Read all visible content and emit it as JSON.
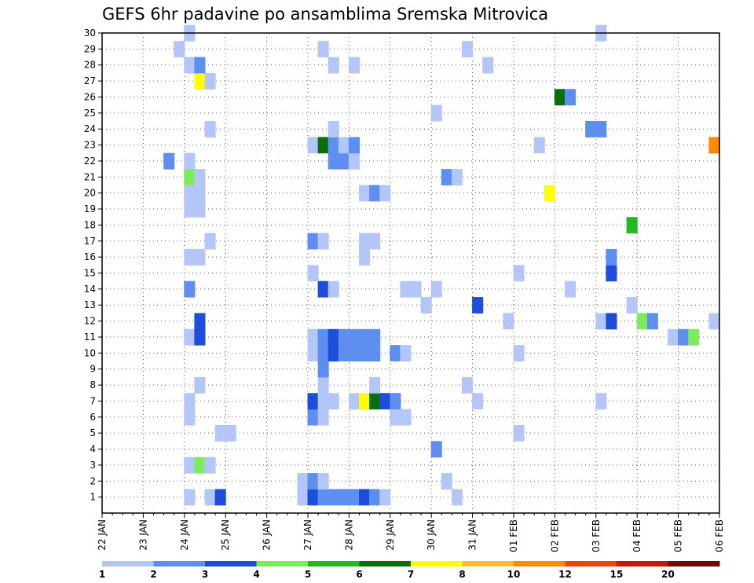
{
  "chart_data": {
    "type": "heatmap",
    "title": "GEFS 6hr padavine po ansamblima Sremska Mitrovica",
    "xlabel": "",
    "ylabel": "",
    "x_ticks": [
      "22 JAN",
      "23 JAN",
      "24 JAN",
      "25 JAN",
      "26 JAN",
      "27 JAN",
      "28 JAN",
      "29 JAN",
      "30 JAN",
      "31 JAN",
      "01 FEB",
      "02 FEB",
      "03 FEB",
      "04 FEB",
      "05 FEB",
      "06 FEB"
    ],
    "x_range": [
      0,
      60
    ],
    "y_range": [
      0,
      30
    ],
    "y_ticks": [
      1,
      2,
      3,
      4,
      5,
      6,
      7,
      8,
      9,
      10,
      11,
      12,
      13,
      14,
      15,
      16,
      17,
      18,
      19,
      20,
      21,
      22,
      23,
      24,
      25,
      26,
      27,
      28,
      29,
      30
    ],
    "x_step": "6hr",
    "grid": true,
    "legend_position": "bottom",
    "legend_labels": [
      "1",
      "2",
      "3",
      "4",
      "5",
      "6",
      "7",
      "8",
      "10",
      "12",
      "15",
      "20"
    ],
    "legend_colors": [
      "#b3c6f7",
      "#5e8ef0",
      "#1c4ddb",
      "#7ceb5c",
      "#22b822",
      "#0b6e0b",
      "#ffff00",
      "#ffbb2e",
      "#ff8a00",
      "#e64a00",
      "#c41a00",
      "#6e0a0a"
    ],
    "cell_color_scale": [
      "#b3c6f7",
      "#5e8ef0",
      "#1c4ddb",
      "#7ceb5c",
      "#22b822",
      "#0b6e0b",
      "#ffff00",
      "#ff8a00"
    ],
    "cells": [
      [
        8,
        1,
        1
      ],
      [
        10,
        1,
        1
      ],
      [
        11,
        1,
        3
      ],
      [
        19,
        1,
        1
      ],
      [
        20,
        1,
        3
      ],
      [
        21,
        1,
        2
      ],
      [
        22,
        1,
        2
      ],
      [
        23,
        1,
        2
      ],
      [
        24,
        1,
        2
      ],
      [
        25,
        1,
        3
      ],
      [
        26,
        1,
        2
      ],
      [
        27,
        1,
        1
      ],
      [
        34,
        1,
        1
      ],
      [
        19,
        2,
        1
      ],
      [
        20,
        2,
        2
      ],
      [
        21,
        2,
        1
      ],
      [
        33,
        2,
        1
      ],
      [
        8,
        3,
        1
      ],
      [
        9,
        3,
        4
      ],
      [
        10,
        3,
        1
      ],
      [
        32,
        4,
        2
      ],
      [
        11,
        5,
        1
      ],
      [
        12,
        5,
        1
      ],
      [
        40,
        5,
        1
      ],
      [
        8,
        6,
        1
      ],
      [
        20,
        6,
        2
      ],
      [
        21,
        6,
        1
      ],
      [
        28,
        6,
        1
      ],
      [
        29,
        6,
        1
      ],
      [
        8,
        7,
        1
      ],
      [
        20,
        7,
        3
      ],
      [
        21,
        7,
        1
      ],
      [
        22,
        7,
        1
      ],
      [
        24,
        7,
        1
      ],
      [
        25,
        7,
        7
      ],
      [
        26,
        7,
        6
      ],
      [
        27,
        7,
        3
      ],
      [
        28,
        7,
        2
      ],
      [
        36,
        7,
        1
      ],
      [
        48,
        7,
        1
      ],
      [
        9,
        8,
        1
      ],
      [
        21,
        8,
        1
      ],
      [
        26,
        8,
        1
      ],
      [
        35,
        8,
        1
      ],
      [
        21,
        9,
        2
      ],
      [
        20,
        10,
        1
      ],
      [
        21,
        10,
        2
      ],
      [
        22,
        10,
        3
      ],
      [
        23,
        10,
        2
      ],
      [
        24,
        10,
        2
      ],
      [
        25,
        10,
        2
      ],
      [
        26,
        10,
        2
      ],
      [
        28,
        10,
        2
      ],
      [
        29,
        10,
        1
      ],
      [
        40,
        10,
        1
      ],
      [
        8,
        11,
        1
      ],
      [
        9,
        11,
        3
      ],
      [
        20,
        11,
        1
      ],
      [
        21,
        11,
        2
      ],
      [
        22,
        11,
        3
      ],
      [
        23,
        11,
        2
      ],
      [
        24,
        11,
        2
      ],
      [
        25,
        11,
        2
      ],
      [
        26,
        11,
        2
      ],
      [
        55,
        11,
        1
      ],
      [
        56,
        11,
        2
      ],
      [
        57,
        11,
        4
      ],
      [
        9,
        12,
        3
      ],
      [
        39,
        12,
        1
      ],
      [
        48,
        12,
        1
      ],
      [
        49,
        12,
        3
      ],
      [
        52,
        12,
        4
      ],
      [
        53,
        12,
        2
      ],
      [
        59,
        12,
        1
      ],
      [
        31,
        13,
        1
      ],
      [
        36,
        13,
        3
      ],
      [
        51,
        13,
        1
      ],
      [
        8,
        14,
        2
      ],
      [
        21,
        14,
        3
      ],
      [
        22,
        14,
        1
      ],
      [
        29,
        14,
        1
      ],
      [
        30,
        14,
        1
      ],
      [
        32,
        14,
        1
      ],
      [
        45,
        14,
        1
      ],
      [
        20,
        15,
        1
      ],
      [
        40,
        15,
        1
      ],
      [
        49,
        15,
        3
      ],
      [
        8,
        16,
        1
      ],
      [
        9,
        16,
        1
      ],
      [
        25,
        16,
        1
      ],
      [
        49,
        16,
        2
      ],
      [
        10,
        17,
        1
      ],
      [
        20,
        17,
        2
      ],
      [
        21,
        17,
        1
      ],
      [
        25,
        17,
        1
      ],
      [
        26,
        17,
        1
      ],
      [
        51,
        18,
        5
      ],
      [
        8,
        19,
        1
      ],
      [
        9,
        19,
        1
      ],
      [
        8,
        20,
        1
      ],
      [
        9,
        20,
        1
      ],
      [
        25,
        20,
        1
      ],
      [
        26,
        20,
        2
      ],
      [
        27,
        20,
        1
      ],
      [
        43,
        20,
        7
      ],
      [
        8,
        21,
        4
      ],
      [
        9,
        21,
        1
      ],
      [
        33,
        21,
        2
      ],
      [
        34,
        21,
        1
      ],
      [
        6,
        22,
        2
      ],
      [
        8,
        22,
        1
      ],
      [
        22,
        22,
        2
      ],
      [
        23,
        22,
        2
      ],
      [
        24,
        22,
        1
      ],
      [
        20,
        23,
        1
      ],
      [
        21,
        23,
        6
      ],
      [
        22,
        23,
        2
      ],
      [
        23,
        23,
        1
      ],
      [
        24,
        23,
        2
      ],
      [
        42,
        23,
        1
      ],
      [
        59,
        23,
        8
      ],
      [
        10,
        24,
        1
      ],
      [
        22,
        24,
        1
      ],
      [
        47,
        24,
        2
      ],
      [
        48,
        24,
        2
      ],
      [
        32,
        25,
        1
      ],
      [
        44,
        26,
        6
      ],
      [
        45,
        26,
        2
      ],
      [
        9,
        27,
        7
      ],
      [
        10,
        27,
        1
      ],
      [
        8,
        28,
        1
      ],
      [
        9,
        28,
        2
      ],
      [
        22,
        28,
        1
      ],
      [
        24,
        28,
        1
      ],
      [
        37,
        28,
        1
      ],
      [
        7,
        29,
        1
      ],
      [
        21,
        29,
        1
      ],
      [
        35,
        29,
        1
      ],
      [
        8,
        30,
        1
      ],
      [
        48,
        30,
        1
      ]
    ]
  }
}
